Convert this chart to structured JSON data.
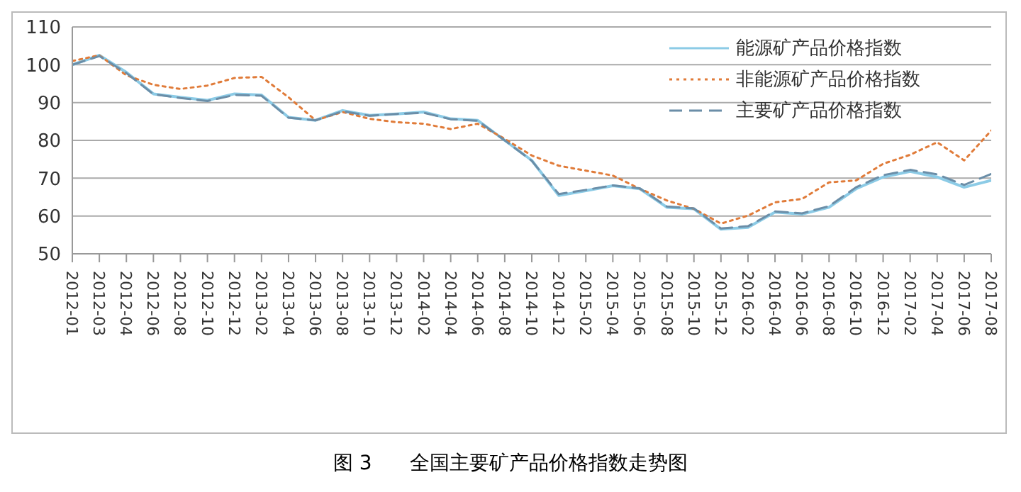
{
  "chart_data": {
    "type": "line",
    "categories": [
      "2012-01",
      "2012-03",
      "2012-04",
      "2012-06",
      "2012-08",
      "2012-10",
      "2012-12",
      "2013-02",
      "2013-04",
      "2013-06",
      "2013-08",
      "2013-10",
      "2013-12",
      "2014-02",
      "2014-04",
      "2014-06",
      "2014-08",
      "2014-10",
      "2014-12",
      "2015-02",
      "2015-04",
      "2015-06",
      "2015-08",
      "2015-10",
      "2015-12",
      "2016-02",
      "2016-04",
      "2016-06",
      "2016-08",
      "2016-10",
      "2016-12",
      "2017-02",
      "2017-04",
      "2017-06",
      "2017-08"
    ],
    "series": [
      {
        "name": "能源矿产品价格指数",
        "color": "#8ccbe6",
        "line_style": "solid",
        "values": [
          100,
          102.5,
          98,
          92.3,
          91.4,
          90.6,
          92.3,
          92,
          86.1,
          85.3,
          87.9,
          86.6,
          87,
          87.5,
          85.7,
          85.3,
          80,
          74.7,
          65.4,
          66.7,
          68,
          67.2,
          62.3,
          61.9,
          56.5,
          57,
          61,
          60.5,
          62.3,
          67.2,
          70.3,
          71.8,
          70.3,
          67.6,
          69.4
        ]
      },
      {
        "name": "非能源矿产品价格指数",
        "color": "#e07b39",
        "line_style": "dotted",
        "values": [
          101,
          102.5,
          97.2,
          94.7,
          93.6,
          94.5,
          96.5,
          96.8,
          91.4,
          85.3,
          87.5,
          85.7,
          84.8,
          84.4,
          83,
          84.4,
          80.4,
          76,
          73.3,
          72,
          70.7,
          67.2,
          64.1,
          61.9,
          58,
          60.1,
          63.6,
          64.5,
          68.9,
          69.4,
          73.8,
          76.2,
          79.5,
          74.7,
          82.6
        ]
      },
      {
        "name": "主要矿产品价格指数",
        "color": "#6b8ea8",
        "line_style": "dashed",
        "values": [
          100,
          102.3,
          97.8,
          92.2,
          91.2,
          90.4,
          92,
          91.8,
          86,
          85.3,
          87.7,
          86.5,
          87,
          87.3,
          85.6,
          85.2,
          80,
          74.6,
          65.8,
          66.9,
          68.1,
          67.3,
          62.5,
          62,
          56.7,
          57.3,
          61.2,
          60.7,
          62.6,
          67.6,
          70.8,
          72.2,
          71,
          68.2,
          71.1
        ]
      }
    ],
    "ylim": [
      50,
      110
    ],
    "yticks": [
      50,
      60,
      70,
      80,
      90,
      100,
      110
    ],
    "grid": "y",
    "legend": "top right",
    "annotations": [
      "图 3      全国主要矿产品价格指数走势图"
    ]
  }
}
